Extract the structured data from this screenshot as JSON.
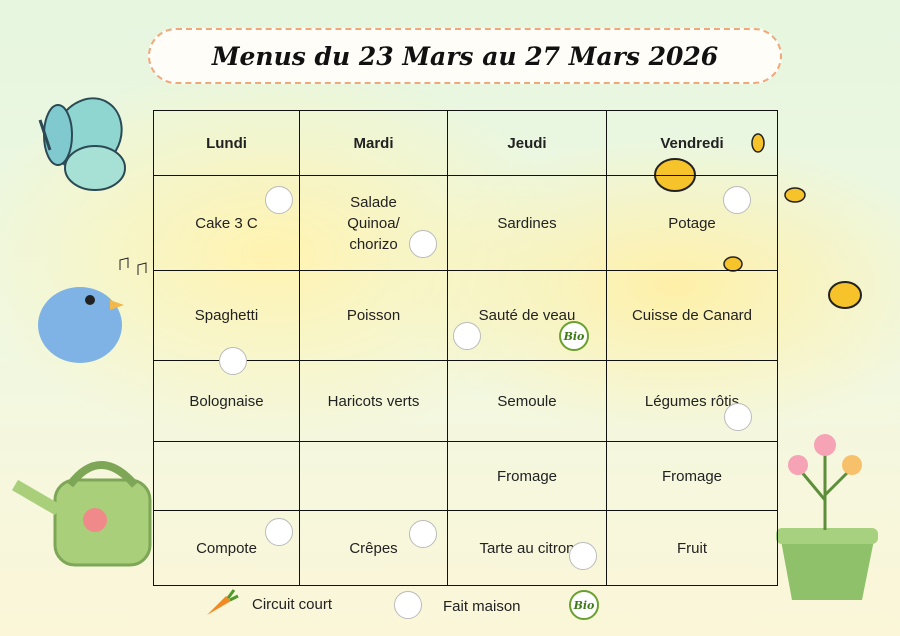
{
  "header": {
    "title": "Menus du 23 Mars au 27 Mars 2026"
  },
  "table": {
    "columns": [
      "Lundi",
      "Mardi",
      "Jeudi",
      "Vendredi"
    ],
    "rows": [
      [
        "Cake 3 C",
        "Salade Quinoa/ chorizo",
        "Sardines",
        "Potage"
      ],
      [
        "Spaghetti",
        "Poisson",
        "Sauté de veau",
        "Cuisse de Canard"
      ],
      [
        "Bolognaise",
        "Haricots verts",
        "Semoule",
        "Légumes rôtis"
      ],
      [
        null,
        null,
        "Fromage",
        "Fromage"
      ],
      [
        "Compote",
        "Crêpes",
        "Tarte au citron",
        "Fruit"
      ]
    ]
  },
  "legend": {
    "items": [
      "Circuit court",
      "Fait maison"
    ],
    "bio_logo": "Bio"
  }
}
